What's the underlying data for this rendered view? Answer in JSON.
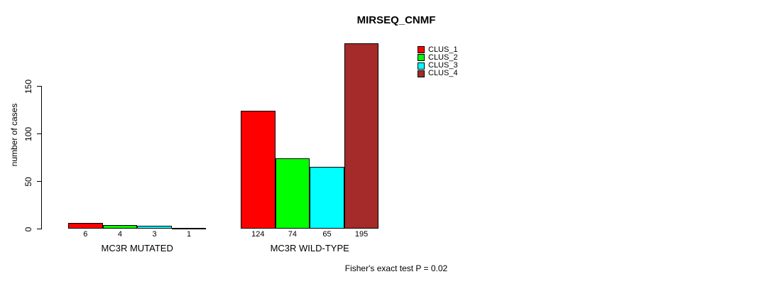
{
  "colors": {
    "background": "#FFFFFF",
    "text": "#000000",
    "bar_border": "#000000",
    "axis": "#000000"
  },
  "chart_data": {
    "type": "bar",
    "title": "MIRSEQ_CNMF",
    "xlabel": "",
    "ylabel": "number of cases",
    "yticks": [
      0,
      50,
      100,
      150
    ],
    "ylim": [
      0,
      195
    ],
    "grid": false,
    "categories": [
      "MC3R MUTATED",
      "MC3R WILD-TYPE"
    ],
    "series": [
      {
        "name": "CLUS_1",
        "color": "#FF0000",
        "values": [
          6,
          124
        ]
      },
      {
        "name": "CLUS_2",
        "color": "#00FF00",
        "values": [
          4,
          74
        ]
      },
      {
        "name": "CLUS_3",
        "color": "#00FFFF",
        "values": [
          3,
          65
        ]
      },
      {
        "name": "CLUS_4",
        "color": "#A52A2A",
        "values": [
          1,
          195
        ]
      }
    ],
    "bar_value_labels_shown": true,
    "legend": {
      "position": "inside-top-center-right",
      "entries": [
        "CLUS_1",
        "CLUS_2",
        "CLUS_3",
        "CLUS_4"
      ]
    },
    "annotation": "Fisher's exact test P = 0.02"
  }
}
